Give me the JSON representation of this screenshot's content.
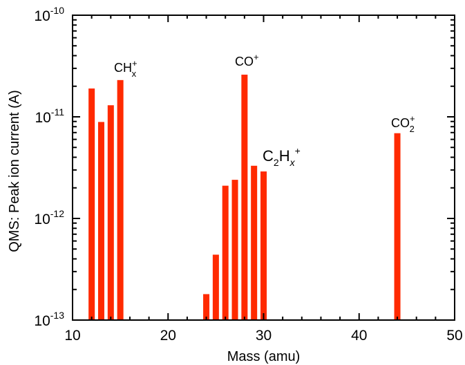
{
  "chart_data": {
    "type": "bar",
    "title": "",
    "xlabel": "Mass (amu)",
    "ylabel": "QMS: Peak ion current (A)",
    "xlim": [
      10,
      50
    ],
    "ylim": [
      1e-13,
      1e-10
    ],
    "yscale": "log",
    "grid": false,
    "bar_color": "#ff2a00",
    "x_ticks": [
      10,
      20,
      30,
      40,
      50
    ],
    "y_ticks": [
      {
        "base": "10",
        "exp": "-13",
        "value": 1e-13
      },
      {
        "base": "10",
        "exp": "-12",
        "value": 1e-12
      },
      {
        "base": "10",
        "exp": "-11",
        "value": 1e-11
      },
      {
        "base": "10",
        "exp": "-10",
        "value": 1e-10
      }
    ],
    "x": [
      12,
      13,
      14,
      15,
      24,
      25,
      26,
      27,
      28,
      29,
      30,
      44
    ],
    "values": [
      1.9e-11,
      8.9e-12,
      1.3e-11,
      2.3e-11,
      1.8e-13,
      4.4e-13,
      2.1e-12,
      2.4e-12,
      2.6e-11,
      3.3e-12,
      2.9e-12,
      6.9e-12
    ],
    "annotations": [
      {
        "main": "CH",
        "sup": "+",
        "sub": "x",
        "near_mass": 16
      },
      {
        "main": "CO",
        "sup": "+",
        "near_mass": 28
      },
      {
        "main": "C",
        "sub": "2",
        "main2": "H",
        "sub2": "x",
        "sup": "+",
        "near_mass": 31
      },
      {
        "main": "CO",
        "sub": "2",
        "sup": "+",
        "near_mass": 44
      }
    ]
  }
}
